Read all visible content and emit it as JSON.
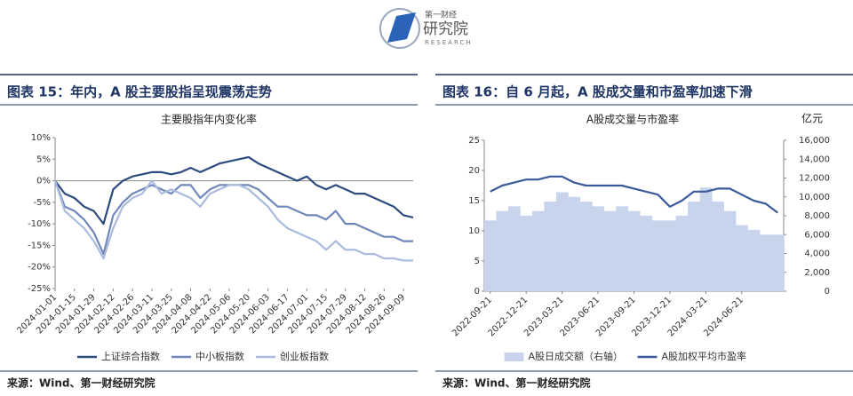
{
  "header": {
    "brand": "第一财经",
    "name": "研究院",
    "sub": "RESEARCH"
  },
  "figures": [
    {
      "title": "图表 15：年内，A 股主要股指呈现震荡走势",
      "source": "来源：Wind、第一财经研究院"
    },
    {
      "title": "图表 16：自 6 月起，A 股成交量和市盈率加速下滑",
      "source": "来源：Wind、第一财经研究院"
    }
  ],
  "chart_data": [
    {
      "type": "line",
      "title": "主要股指年内变化率",
      "categories": [
        "2024-01-01",
        null,
        "2024-01-15",
        null,
        "2024-01-29",
        null,
        "2024-02-12",
        null,
        "2024-02-26",
        null,
        "2024-03-11",
        null,
        "2024-03-25",
        null,
        "2024-04-08",
        null,
        "2024-04-22",
        null,
        "2024-05-06",
        null,
        "2024-05-20",
        null,
        "2024-06-03",
        null,
        "2024-06-17",
        null,
        "2024-07-01",
        null,
        "2024-07-15",
        null,
        "2024-07-29",
        null,
        "2024-08-12",
        null,
        "2024-08-26",
        null,
        "2024-09-09",
        null
      ],
      "ylim": [
        -25,
        10
      ],
      "yticks": [
        {
          "value": -25,
          "label": "-25%"
        },
        {
          "value": -20,
          "label": "-20%"
        },
        {
          "value": -15,
          "label": "-15%"
        },
        {
          "value": -10,
          "label": "-10%"
        },
        {
          "value": -5,
          "label": "-5%"
        },
        {
          "value": 0,
          "label": "0%"
        },
        {
          "value": 5,
          "label": "5%"
        },
        {
          "value": 10,
          "label": "10%"
        }
      ],
      "series": [
        {
          "name": "上证综合指数",
          "color": "#2c4a7e",
          "values": [
            0,
            -3,
            -4,
            -6,
            -7,
            -10,
            -2,
            0,
            1,
            1.5,
            2,
            2,
            1.5,
            2,
            3,
            2,
            3,
            4,
            4.5,
            5,
            5.5,
            4,
            3,
            2,
            1,
            0,
            1,
            -1,
            -2,
            -1,
            -2,
            -3,
            -3,
            -4,
            -5,
            -6,
            -8,
            -8.5
          ]
        },
        {
          "name": "中小板指数",
          "color": "#6f87bb",
          "values": [
            0,
            -6,
            -7,
            -9,
            -12,
            -17,
            -8,
            -5,
            -3,
            -2,
            -1,
            -2,
            -3,
            -1,
            -1,
            -4,
            -2,
            -1,
            -1,
            -1,
            -1,
            -2,
            -4,
            -6,
            -6,
            -7,
            -8,
            -8,
            -9,
            -7,
            -10,
            -10,
            -11,
            -12,
            -13,
            -13,
            -14,
            -14
          ]
        },
        {
          "name": "创业板指数",
          "color": "#aabbdf",
          "values": [
            0,
            -7,
            -9,
            -11,
            -14,
            -18,
            -11,
            -6,
            -4,
            -3,
            0,
            -3,
            -2,
            -3,
            -4,
            -6,
            -3,
            -2,
            -1,
            -1,
            -2,
            -4,
            -6,
            -9,
            -11,
            -12,
            -13,
            -14,
            -16,
            -14,
            -16,
            -16,
            -17,
            -17,
            -18,
            -18,
            -18.5,
            -18.5
          ]
        }
      ]
    },
    {
      "type": "combo",
      "title": "A股成交量与市盈率",
      "y2_label": "亿元",
      "categories": [
        "2022-09-21",
        null,
        null,
        "2022-12-21",
        null,
        null,
        "2023-03-21",
        null,
        null,
        "2023-06-21",
        null,
        null,
        "2023-09-21",
        null,
        null,
        "2023-12-21",
        null,
        null,
        "2024-03-21",
        null,
        null,
        "2024-06-21",
        null,
        null,
        null
      ],
      "ylim": [
        0,
        25
      ],
      "yticks": [
        0,
        5,
        10,
        15,
        20,
        25
      ],
      "y2lim": [
        0,
        16000
      ],
      "y2ticks": [
        0,
        {
          "value": 2000,
          "label": "2,000"
        },
        {
          "value": 4000,
          "label": "4,000"
        },
        {
          "value": 6000,
          "label": "6,000"
        },
        {
          "value": 8000,
          "label": "8,000"
        },
        {
          "value": 10000,
          "label": "10,000"
        },
        {
          "value": 12000,
          "label": "12,000"
        },
        {
          "value": 14000,
          "label": "14,000"
        },
        {
          "value": 16000,
          "label": "16,000"
        }
      ],
      "series": [
        {
          "name": "A股日成交额（右轴）",
          "color": "#c8d4ec",
          "kind": "bar",
          "axis": "y2",
          "values": [
            7500,
            8500,
            9000,
            8000,
            8500,
            9500,
            10500,
            10000,
            9500,
            9000,
            8500,
            9000,
            8500,
            8000,
            7500,
            7500,
            8000,
            9500,
            11000,
            9500,
            8500,
            7000,
            6500,
            6000,
            6000
          ]
        },
        {
          "name": "A股加权平均市盈率",
          "color": "#3a5a9c",
          "kind": "line",
          "values": [
            16.5,
            17.5,
            18,
            18.5,
            18.5,
            19,
            19,
            18,
            17.5,
            17.5,
            17.5,
            17.5,
            17,
            16.5,
            16,
            14,
            15,
            16.5,
            16.5,
            17,
            17,
            16,
            15,
            14.5,
            13
          ]
        }
      ]
    }
  ]
}
